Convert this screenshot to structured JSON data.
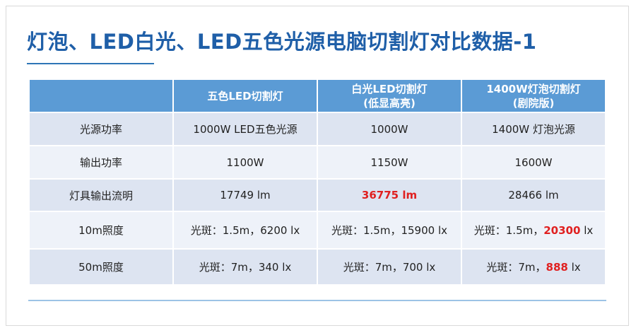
{
  "title": "灯泡、LED白光、LED五色光源电脑切割灯对比数据-1",
  "table": {
    "header": [
      [
        "五色LED切割灯"
      ],
      [
        "白光LED切割灯",
        "(低显高亮)"
      ],
      [
        "1400W灯泡切割灯",
        "(剧院版)"
      ]
    ],
    "rows": [
      {
        "label": "光源功率",
        "cells": [
          {
            "text": "1000W LED五色光源"
          },
          {
            "text": "1000W"
          },
          {
            "text": "1400W 灯泡光源"
          }
        ]
      },
      {
        "label": "输出功率",
        "cells": [
          {
            "text": "1100W"
          },
          {
            "text": "1150W"
          },
          {
            "text": "1600W"
          }
        ]
      },
      {
        "label": "灯具输出流明",
        "cells": [
          {
            "text": "17749 lm"
          },
          {
            "red": "36775 lm"
          },
          {
            "text": "28466 lm"
          }
        ]
      },
      {
        "label": "10m照度",
        "cells": [
          {
            "text": "光斑：1.5m，6200 lx"
          },
          {
            "text": "光斑：1.5m，15900 lx"
          },
          {
            "text": "光斑：1.5m，",
            "red": "20300",
            "after": " lx"
          }
        ]
      },
      {
        "label": "50m照度",
        "cells": [
          {
            "text": "光斑：7m，340 lx"
          },
          {
            "text": "光斑：7m，700 lx"
          },
          {
            "text": "光斑：7m，",
            "red": "888",
            "after": " lx"
          }
        ]
      }
    ]
  }
}
